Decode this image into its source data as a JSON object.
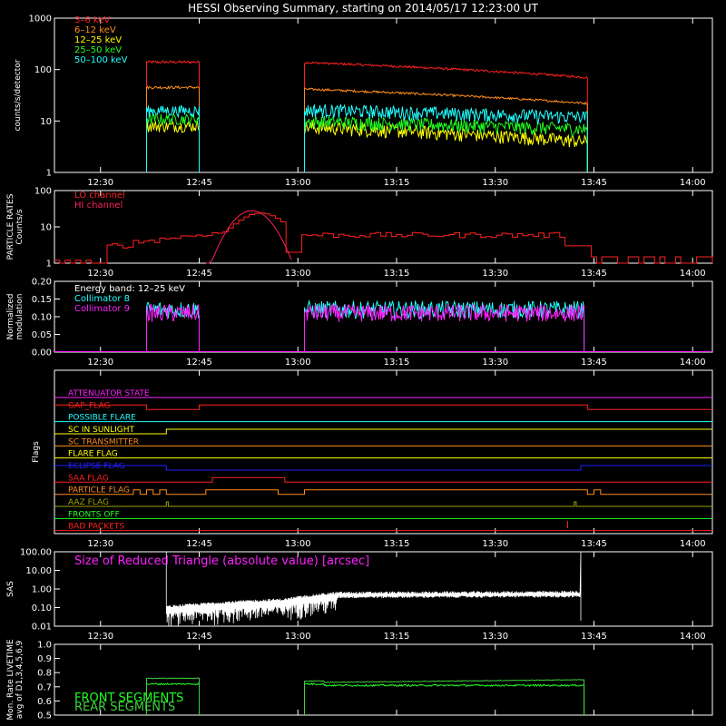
{
  "title": "HESSI Observing Summary, starting on 2014/05/17 12:23:00 UT",
  "time_ticks": [
    "12:30",
    "12:45",
    "13:00",
    "13:15",
    "13:30",
    "13:45",
    "14:00"
  ],
  "colors": {
    "red": "#ff2020",
    "orange": "#ff8c1a",
    "yellow": "#ffff00",
    "green": "#20ff20",
    "cyan": "#20ffff",
    "magenta": "#ff20ff",
    "white": "#ffffff",
    "blue": "#2020ff",
    "olive": "#a0a000",
    "lime": "#40d040",
    "darkred": "#e01020"
  },
  "chart_data": [
    {
      "type": "line",
      "ylabel": "counts/s/detector",
      "ylim": [
        1,
        1000
      ],
      "yscale": "log",
      "yticks": [
        "1",
        "10",
        "100",
        "1000"
      ],
      "segments": [
        [
          "12:37",
          "12:45"
        ],
        [
          "13:01",
          "13:44"
        ]
      ],
      "series": [
        {
          "name": "3–6 keV",
          "color": "#ff2020",
          "start": [
            140,
            140
          ],
          "end": [
            125,
            70
          ]
        },
        {
          "name": "6–12 keV",
          "color": "#ff8c1a",
          "start": [
            45,
            45
          ],
          "end": [
            38,
            22
          ]
        },
        {
          "name": "12–25 keV",
          "color": "#ffff00",
          "start": [
            8,
            8
          ],
          "end": [
            7,
            4
          ]
        },
        {
          "name": "25–50 keV",
          "color": "#20ff20",
          "start": [
            11,
            11
          ],
          "end": [
            9,
            7
          ]
        },
        {
          "name": "50–100 keV",
          "color": "#20ffff",
          "start": [
            16,
            16
          ],
          "end": [
            15,
            12
          ]
        }
      ]
    },
    {
      "type": "line",
      "ylabel": "PARTICLE RATES",
      "ylabel2": "Counts/s",
      "ylim": [
        1,
        100
      ],
      "yscale": "log",
      "yticks": [
        "1",
        "10",
        "100"
      ],
      "series": [
        {
          "name": "LO channel",
          "color": "#ff2020"
        },
        {
          "name": "HI channel",
          "color": "#ff2060"
        }
      ]
    },
    {
      "type": "line",
      "ylabel": "Normalized",
      "ylabel2": "modulation",
      "ylim": [
        0,
        0.2
      ],
      "yticks": [
        "0.00",
        "0.05",
        "0.10",
        "0.15",
        "0.20"
      ],
      "annotation": "Energy band: 12–25 keV",
      "series": [
        {
          "name": "Collimator 8",
          "color": "#20ffff",
          "mean": 0.12
        },
        {
          "name": "Collimator 9",
          "color": "#ff20ff",
          "mean": 0.11
        }
      ]
    },
    {
      "type": "flags",
      "ylabel": "Flags",
      "flags": [
        {
          "name": "ATTENUATOR STATE",
          "color": "#ff20ff"
        },
        {
          "name": "GAP_FLAG",
          "color": "#ff2020"
        },
        {
          "name": "POSSIBLE FLARE",
          "color": "#20ffff"
        },
        {
          "name": "SC IN SUNLIGHT",
          "color": "#ffff00"
        },
        {
          "name": "SC TRANSMITTER",
          "color": "#ff8c1a"
        },
        {
          "name": "FLARE FLAG",
          "color": "#ffff00"
        },
        {
          "name": "ECLIPSE FLAG",
          "color": "#2020ff"
        },
        {
          "name": "SAA FLAG",
          "color": "#ff2020"
        },
        {
          "name": "PARTICLE FLAG",
          "color": "#ff8c1a"
        },
        {
          "name": "AAZ FLAG",
          "color": "#a0a000"
        },
        {
          "name": "FRONTS OFF",
          "color": "#20ff20"
        },
        {
          "name": "BAD PACKETS",
          "color": "#ff2020"
        }
      ]
    },
    {
      "type": "line",
      "ylabel": "SAS",
      "ylim": [
        0.01,
        100
      ],
      "yscale": "log",
      "yticks": [
        "0.01",
        "0.10",
        "1.00",
        "10.00",
        "100.00"
      ],
      "annotation": "Size of Reduced Triangle (absolute value) [arcsec]",
      "series": [
        {
          "name": "Size of Reduced Triangle",
          "color": "#ffffff"
        }
      ]
    },
    {
      "type": "line",
      "ylabel": "Mon. Rate LIVETIME",
      "ylabel2": "avg of D1,3,4,5,6,9",
      "ylim": [
        0.5,
        1.0
      ],
      "yticks": [
        "0.5",
        "0.6",
        "0.7",
        "0.8",
        "0.9",
        "1.0"
      ],
      "series": [
        {
          "name": "FRONT SEGMENTS",
          "color": "#20ff20",
          "start": 0.72,
          "mid": 0.71
        },
        {
          "name": "REAR SEGMENTS",
          "color": "#40d040",
          "start": 0.76,
          "mid": 0.73
        }
      ]
    }
  ]
}
